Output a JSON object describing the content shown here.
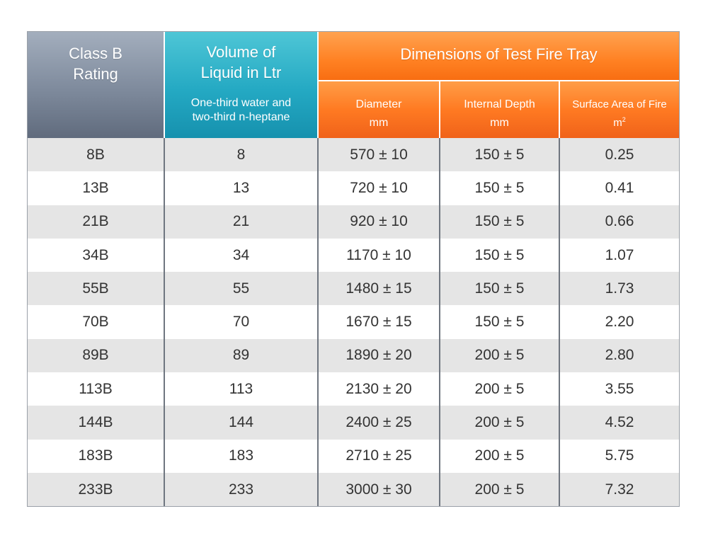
{
  "table": {
    "headers": {
      "class_rating": [
        "Class B",
        "Rating"
      ],
      "volume": [
        "Volume of",
        "Liquid in Ltr"
      ],
      "volume_note": [
        "One-third water and",
        "two-third n-heptane"
      ],
      "dimensions": "Dimensions of Test Fire Tray",
      "diameter": [
        "Diameter",
        "mm"
      ],
      "internal_depth": [
        "Internal Depth",
        "mm"
      ],
      "surface_area": [
        "Surface Area of Fire",
        "m",
        "2"
      ]
    },
    "rows": [
      [
        "8B",
        "8",
        "570 ± 10",
        "150 ± 5",
        "0.25"
      ],
      [
        "13B",
        "13",
        "720 ± 10",
        "150 ± 5",
        "0.41"
      ],
      [
        "21B",
        "21",
        "920 ± 10",
        "150 ± 5",
        "0.66"
      ],
      [
        "34B",
        "34",
        "1170 ± 10",
        "150 ± 5",
        "1.07"
      ],
      [
        "55B",
        "55",
        "1480 ± 15",
        "150 ± 5",
        "1.73"
      ],
      [
        "70B",
        "70",
        "1670 ± 15",
        "150 ± 5",
        "2.20"
      ],
      [
        "89B",
        "89",
        "1890 ± 20",
        "200 ± 5",
        "2.80"
      ],
      [
        "113B",
        "113",
        "2130 ± 20",
        "200 ± 5",
        "3.55"
      ],
      [
        "144B",
        "144",
        "2400 ± 25",
        "200 ± 5",
        "4.52"
      ],
      [
        "183B",
        "183",
        "2710 ± 25",
        "200 ± 5",
        "5.75"
      ],
      [
        "233B",
        "233",
        "3000 ± 30",
        "200 ± 5",
        "7.32"
      ]
    ]
  },
  "colors": {
    "class_header": "#7e8a9c",
    "volume_header": "#24a9c3",
    "dimensions_header": "#ff8123",
    "row_shade": "#e5e5e5",
    "text": "#333333"
  }
}
